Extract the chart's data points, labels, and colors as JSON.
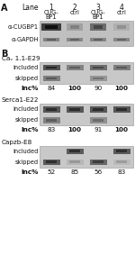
{
  "lanes": [
    "1",
    "2",
    "3",
    "4"
  ],
  "lane_headers": [
    [
      "CUG-",
      "BP1"
    ],
    [
      "ctrl",
      ""
    ],
    [
      "CUG-",
      "BP1"
    ],
    [
      "ctrl",
      ""
    ]
  ],
  "panelA": {
    "rows": [
      "α-CUGBP1",
      "α-GAPDH"
    ],
    "cugbp1_intensities": [
      0.92,
      0.42,
      0.68,
      0.35
    ],
    "gapdh_intensities": [
      0.58,
      0.55,
      0.56,
      0.54
    ]
  },
  "panelB": [
    {
      "title": "Caᵥ 1.1-E29",
      "title_sub": "v",
      "rows": [
        "included",
        "skipped"
      ],
      "included": [
        0.82,
        0.58,
        0.68,
        0.6
      ],
      "skipped": [
        0.6,
        0.0,
        0.48,
        0.0
      ],
      "inc_pct": [
        "84",
        "100",
        "90",
        "100"
      ],
      "bold_vals": [
        false,
        true,
        false,
        true
      ]
    },
    {
      "title": "Serca1-E22",
      "rows": [
        "included",
        "skipped"
      ],
      "included": [
        0.8,
        0.8,
        0.8,
        0.8
      ],
      "skipped": [
        0.58,
        0.0,
        0.52,
        0.0
      ],
      "inc_pct": [
        "83",
        "100",
        "91",
        "100"
      ],
      "bold_vals": [
        false,
        true,
        false,
        true
      ]
    },
    {
      "title": "Capzb-E8",
      "rows": [
        "included",
        "skipped"
      ],
      "included": [
        0.0,
        0.78,
        0.0,
        0.78
      ],
      "skipped": [
        0.78,
        0.32,
        0.72,
        0.3
      ],
      "inc_pct": [
        "52",
        "85",
        "56",
        "83"
      ],
      "bold_vals": [
        false,
        false,
        false,
        false
      ]
    }
  ],
  "gel_bg": "#c8c8c8",
  "gel_border": "#909090",
  "text_color": "#111111",
  "fs_header": 5.5,
  "fs_label": 4.8,
  "fs_section": 5.2,
  "fs_inc": 5.2,
  "fs_AB": 7.0
}
